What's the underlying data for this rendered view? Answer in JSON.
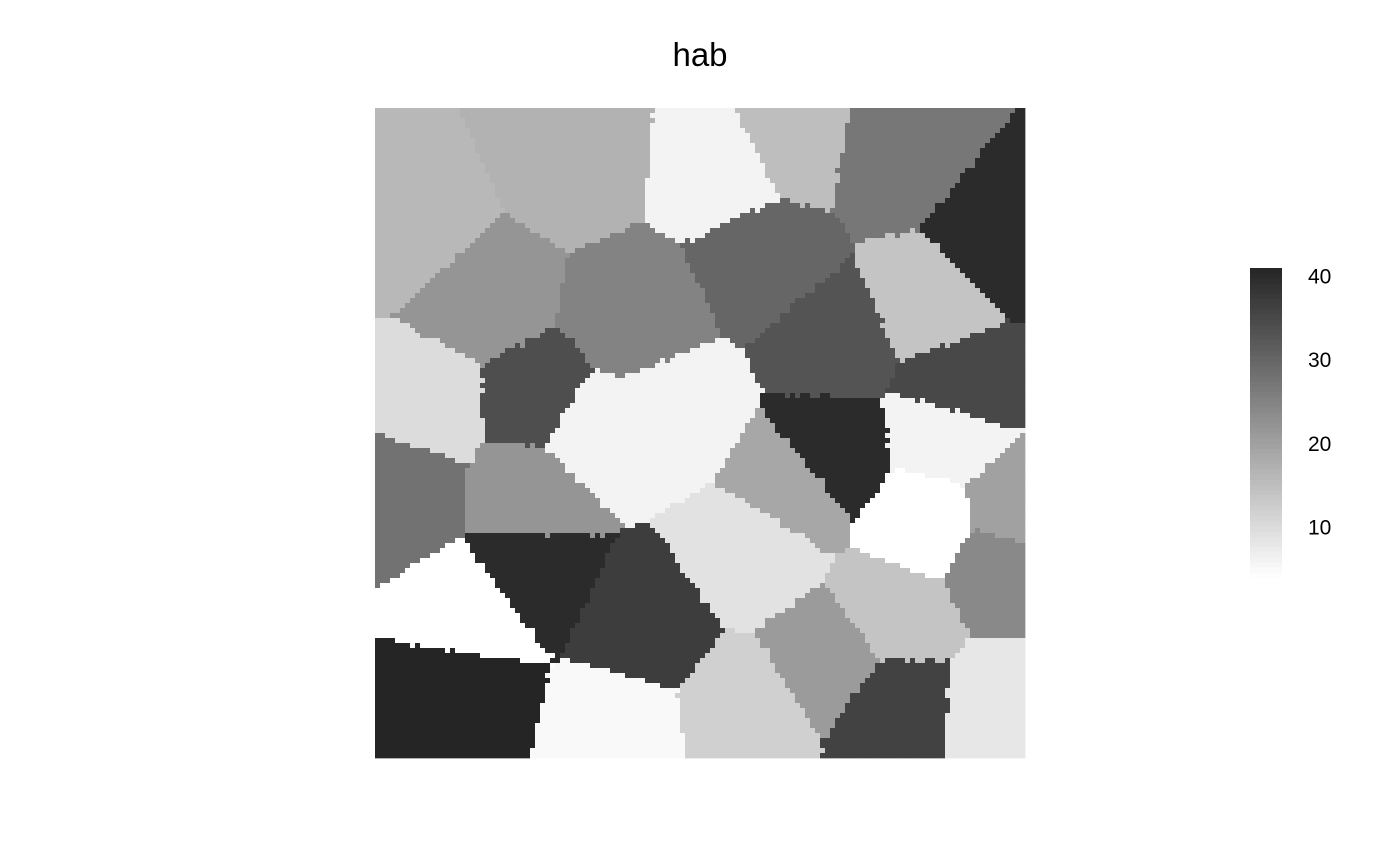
{
  "chart_data": {
    "type": "heatmap",
    "title": "hab",
    "color_scale": {
      "low_color": "#ffffff",
      "high_color": "#252525",
      "min": 4,
      "max": 41
    },
    "legend": {
      "placement": "right",
      "ticks": [
        {
          "label": "40",
          "value": 40
        },
        {
          "label": "30",
          "value": 30
        },
        {
          "label": "20",
          "value": 20
        },
        {
          "label": "10",
          "value": 10
        }
      ]
    },
    "regions": [
      {
        "value": 16
      },
      {
        "value": 17
      },
      {
        "value": 6
      },
      {
        "value": 22
      },
      {
        "value": 25
      },
      {
        "value": 30
      },
      {
        "value": 15
      },
      {
        "value": 27
      },
      {
        "value": 40
      },
      {
        "value": 33
      },
      {
        "value": 14
      },
      {
        "value": 10
      },
      {
        "value": 35
      },
      {
        "value": 22
      },
      {
        "value": 28
      },
      {
        "value": 6
      },
      {
        "value": 34
      },
      {
        "value": 6
      },
      {
        "value": 40
      },
      {
        "value": 6
      },
      {
        "value": 40
      },
      {
        "value": 9
      },
      {
        "value": 20
      },
      {
        "value": 19
      },
      {
        "value": 37
      },
      {
        "value": 4
      },
      {
        "value": 4
      },
      {
        "value": 41
      },
      {
        "value": 5
      },
      {
        "value": 12
      },
      {
        "value": 21
      },
      {
        "value": 36
      },
      {
        "value": 8
      },
      {
        "value": 14
      },
      {
        "value": 24
      }
    ]
  }
}
